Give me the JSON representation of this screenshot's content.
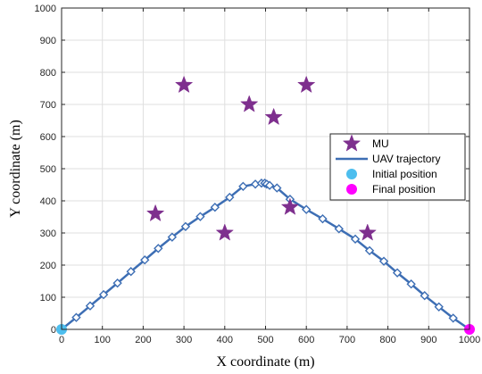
{
  "chart_data": {
    "type": "scatter",
    "xlabel": "X coordinate (m)",
    "ylabel": "Y coordinate (m)",
    "xlim": [
      0,
      1000
    ],
    "ylim": [
      0,
      1000
    ],
    "xticks": [
      0,
      100,
      200,
      300,
      400,
      500,
      600,
      700,
      800,
      900,
      1000
    ],
    "yticks": [
      0,
      100,
      200,
      300,
      400,
      500,
      600,
      700,
      800,
      900,
      1000
    ],
    "grid": true,
    "legend_position": "right",
    "series": [
      {
        "name": "MU",
        "kind": "star-markers",
        "color": "#7e2f8e",
        "points": [
          {
            "x": 300,
            "y": 760
          },
          {
            "x": 600,
            "y": 760
          },
          {
            "x": 460,
            "y": 700
          },
          {
            "x": 520,
            "y": 660
          },
          {
            "x": 230,
            "y": 360
          },
          {
            "x": 400,
            "y": 300
          },
          {
            "x": 560,
            "y": 380
          },
          {
            "x": 750,
            "y": 300
          }
        ]
      },
      {
        "name": "UAV trajectory",
        "kind": "line-diamond",
        "color": "#3d6eb4",
        "points": [
          {
            "x": 0,
            "y": 0
          },
          {
            "x": 36,
            "y": 37
          },
          {
            "x": 70,
            "y": 73
          },
          {
            "x": 103,
            "y": 108
          },
          {
            "x": 137,
            "y": 144
          },
          {
            "x": 170,
            "y": 180
          },
          {
            "x": 204,
            "y": 216
          },
          {
            "x": 237,
            "y": 252
          },
          {
            "x": 271,
            "y": 287
          },
          {
            "x": 304,
            "y": 320
          },
          {
            "x": 340,
            "y": 351
          },
          {
            "x": 376,
            "y": 380
          },
          {
            "x": 412,
            "y": 411
          },
          {
            "x": 445,
            "y": 445
          },
          {
            "x": 475,
            "y": 452
          },
          {
            "x": 490,
            "y": 455
          },
          {
            "x": 498,
            "y": 455
          },
          {
            "x": 503,
            "y": 452
          },
          {
            "x": 510,
            "y": 448
          },
          {
            "x": 528,
            "y": 440
          },
          {
            "x": 560,
            "y": 405
          },
          {
            "x": 600,
            "y": 373
          },
          {
            "x": 640,
            "y": 344
          },
          {
            "x": 680,
            "y": 313
          },
          {
            "x": 720,
            "y": 281
          },
          {
            "x": 755,
            "y": 245
          },
          {
            "x": 790,
            "y": 212
          },
          {
            "x": 823,
            "y": 176
          },
          {
            "x": 857,
            "y": 141
          },
          {
            "x": 890,
            "y": 105
          },
          {
            "x": 925,
            "y": 70
          },
          {
            "x": 960,
            "y": 35
          },
          {
            "x": 1000,
            "y": 0
          }
        ]
      },
      {
        "name": "Initial position",
        "kind": "circle-marker",
        "color": "#4dbeee",
        "points": [
          {
            "x": 0,
            "y": 0
          }
        ]
      },
      {
        "name": "Final position",
        "kind": "circle-marker",
        "color": "#ff00ff",
        "points": [
          {
            "x": 1000,
            "y": 0
          }
        ]
      }
    ]
  }
}
